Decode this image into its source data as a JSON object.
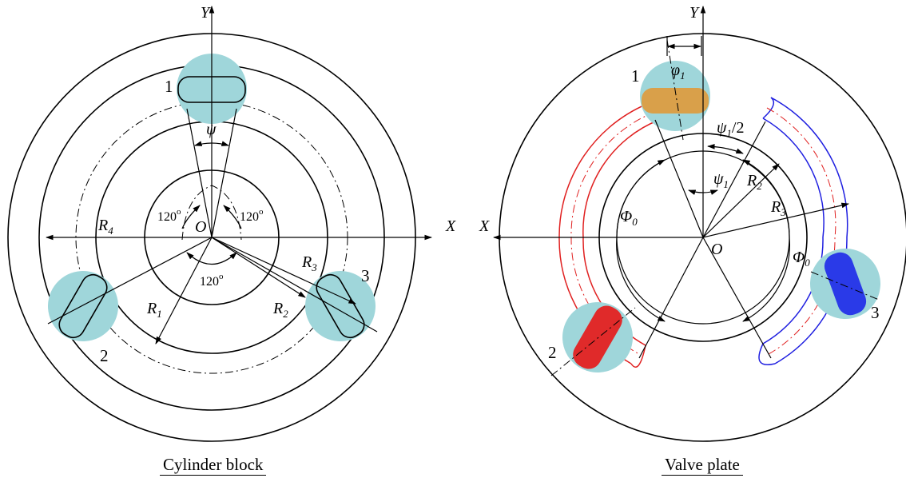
{
  "cylinder_block": {
    "caption": "Cylinder block",
    "axis_x": "X",
    "axis_y": "Y",
    "origin": "O",
    "angle_psi": "ψ",
    "angle_120": "120",
    "deg_mark": "o",
    "radius_1": "R",
    "radius_1_sub": "1",
    "radius_2": "R",
    "radius_2_sub": "2",
    "radius_3": "R",
    "radius_3_sub": "3",
    "radius_4": "R",
    "radius_4_sub": "4",
    "port_1": "1",
    "port_2": "2",
    "port_3": "3"
  },
  "valve_plate": {
    "caption": "Valve plate",
    "axis_x": "X",
    "axis_y": "Y",
    "origin": "O",
    "phi_1": "φ",
    "phi_1_sub": "1",
    "psi_1_half": "ψ",
    "psi_1_half_sub": "1",
    "psi_1_half_tail": "/2",
    "psi_1": "ψ",
    "psi_1_sub": "1",
    "Phi_0_left": "Φ",
    "Phi_0_left_sub": "0",
    "Phi_0_right": "Φ",
    "Phi_0_right_sub": "0",
    "radius_2": "R",
    "radius_2_sub": "2",
    "radius_3": "R",
    "radius_3_sub": "3",
    "port_1": "1",
    "port_2": "2",
    "port_3": "3"
  },
  "colors": {
    "port_highlight": "#9fd6da",
    "suction_kidney": "#e02020",
    "discharge_kidney": "#2020e0",
    "port1_fill": "#d9a04a",
    "port2_fill": "#e02a2a",
    "port3_fill": "#2a3ae8"
  }
}
